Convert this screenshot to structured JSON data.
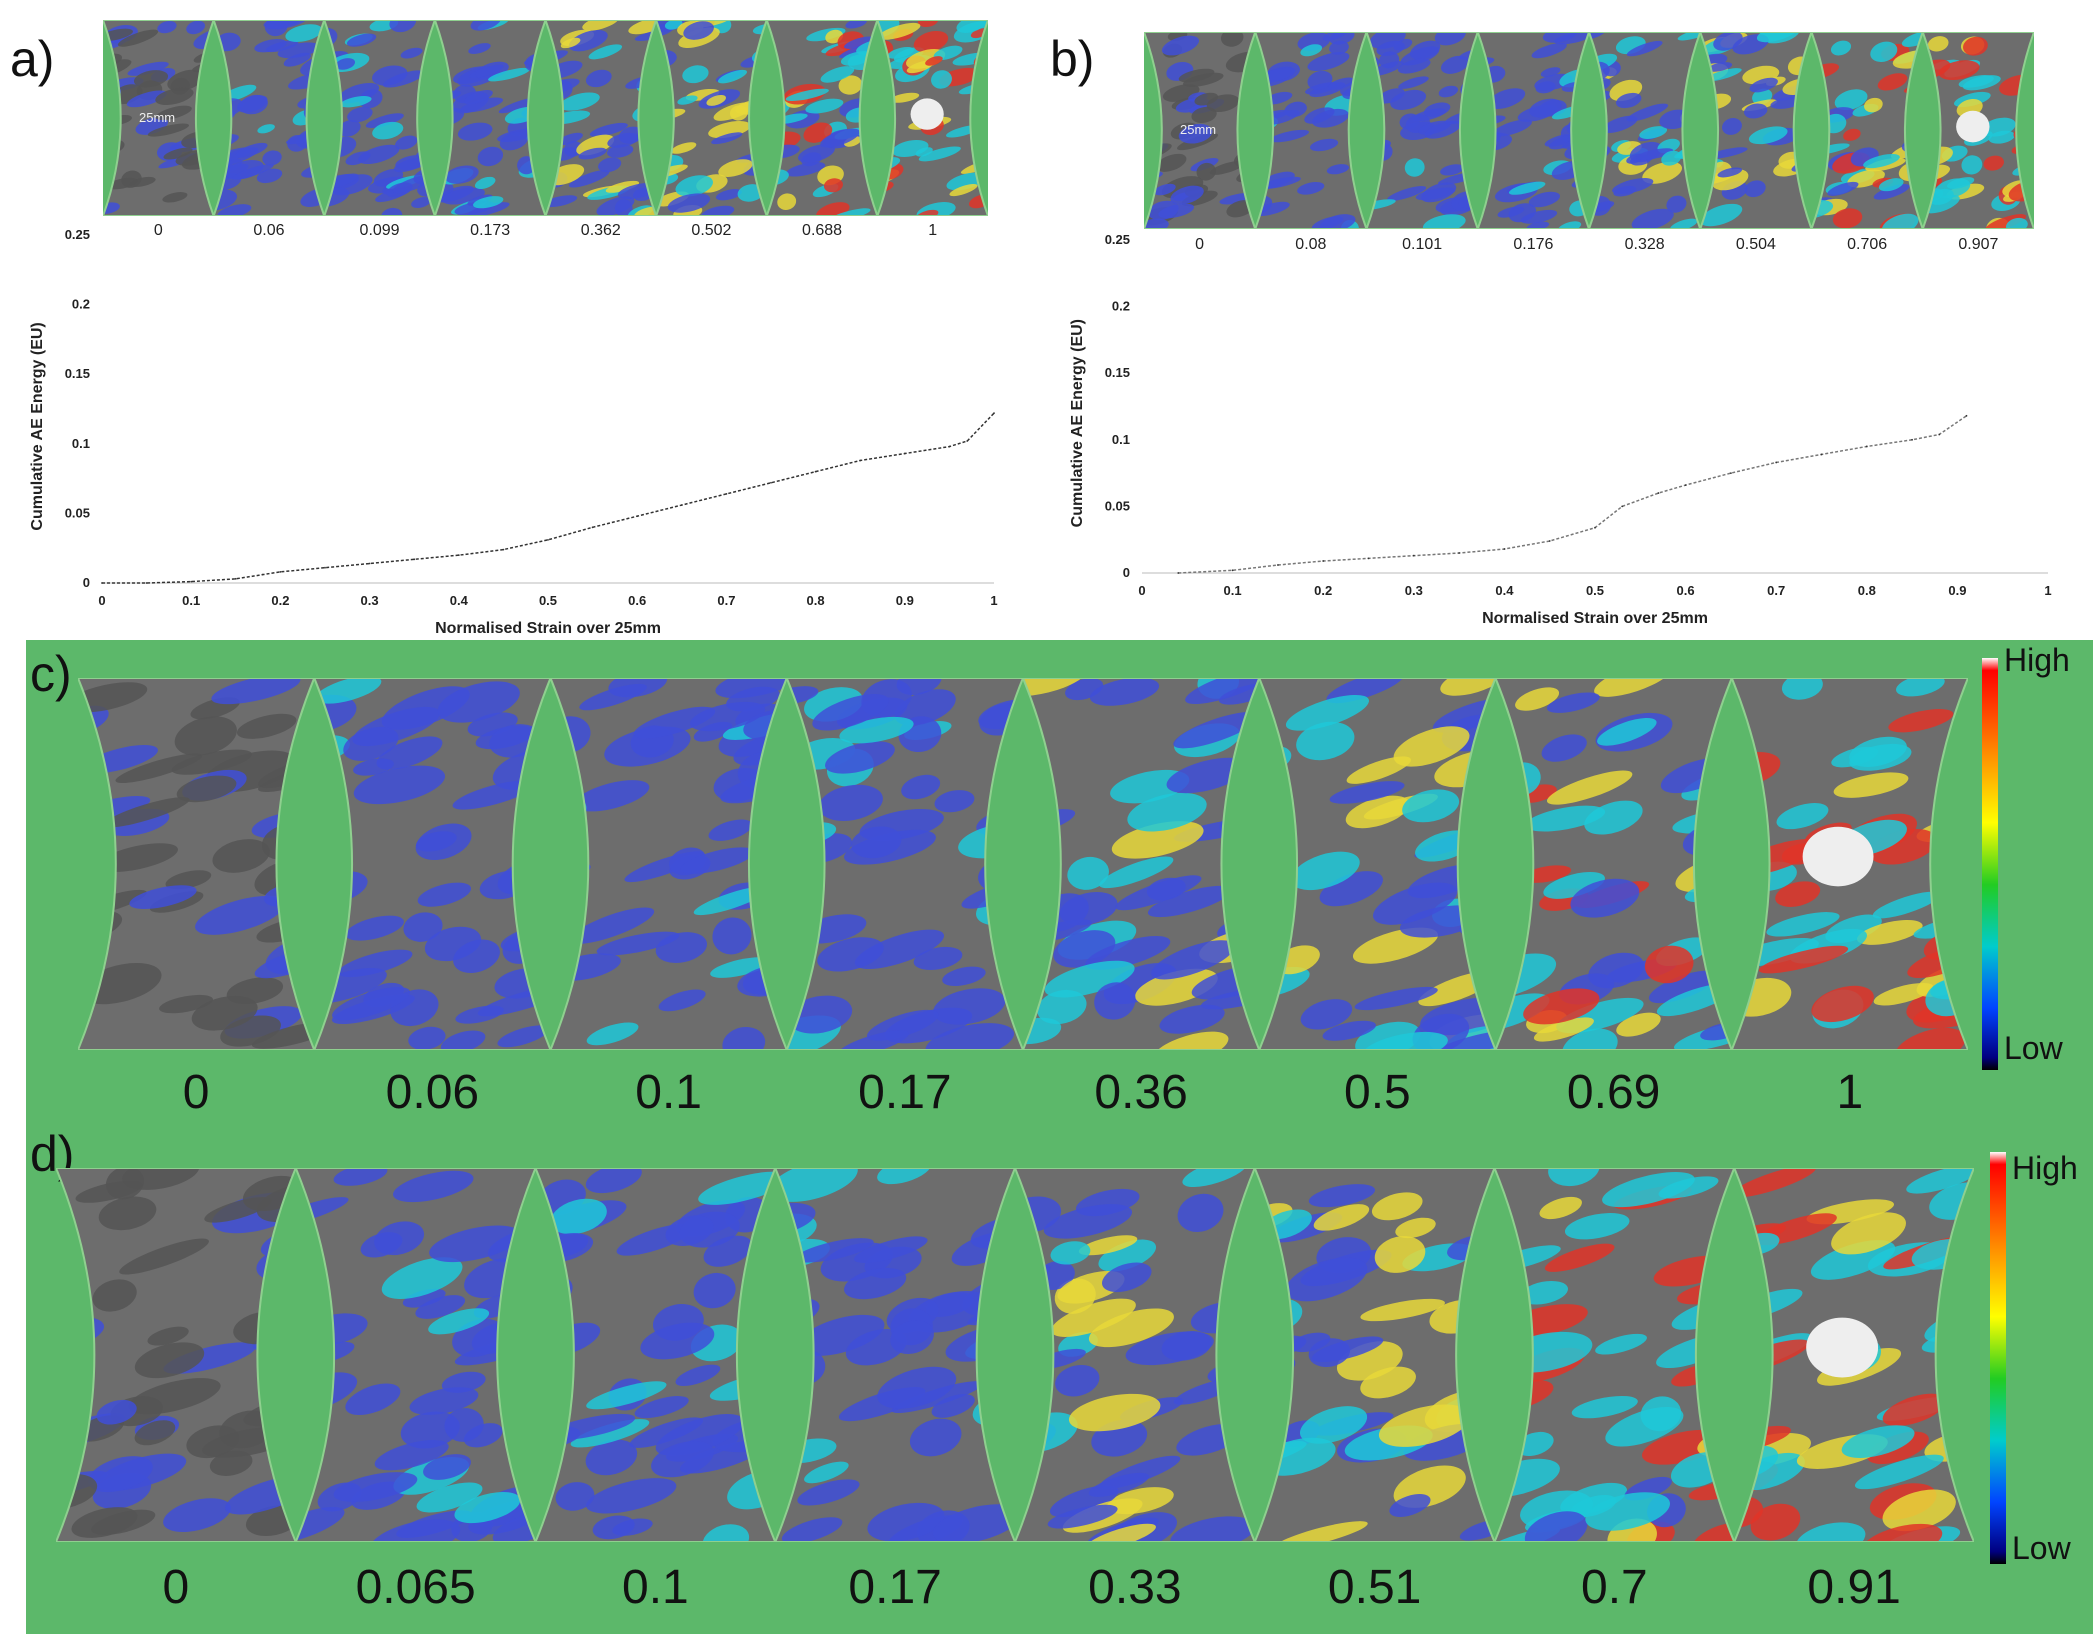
{
  "colors": {
    "background_green": "#5cb86a",
    "grey": "#6d6d6d",
    "blue": "#3f4fd8",
    "cyan": "#1fc8d8",
    "yellow": "#e8d83a",
    "red": "#e03428",
    "white": "#eeeeee"
  },
  "panel_a": {
    "letter": "a)",
    "scale_label": "25mm",
    "strains": [
      "0",
      "0.06",
      "0.099",
      "0.173",
      "0.362",
      "0.502",
      "0.688",
      "1"
    ],
    "strain_values": [
      0,
      0.06,
      0.099,
      0.173,
      0.362,
      0.502,
      0.688,
      1
    ]
  },
  "panel_b": {
    "letter": "b)",
    "scale_label": "25mm",
    "strains": [
      "0",
      "0.08",
      "0.101",
      "0.176",
      "0.328",
      "0.504",
      "0.706",
      "0.907"
    ],
    "strain_values": [
      0,
      0.08,
      0.101,
      0.176,
      0.328,
      0.504,
      0.706,
      0.907
    ]
  },
  "panel_c": {
    "letter": "c)",
    "strains": [
      "0",
      "0.06",
      "0.1",
      "0.17",
      "0.36",
      "0.5",
      "0.69",
      "1"
    ],
    "strain_values": [
      0,
      0.06,
      0.1,
      0.17,
      0.36,
      0.5,
      0.69,
      1
    ],
    "colorbar_high": "High",
    "colorbar_low": "Low"
  },
  "panel_d": {
    "letter": "d)",
    "strains": [
      "0",
      "0.065",
      "0.1",
      "0.17",
      "0.33",
      "0.51",
      "0.7",
      "0.91"
    ],
    "strain_values": [
      0,
      0.065,
      0.1,
      0.17,
      0.33,
      0.51,
      0.7,
      0.91
    ],
    "colorbar_high": "High",
    "colorbar_low": "Low"
  },
  "chart_data": [
    {
      "type": "line",
      "panel": "a",
      "title": "",
      "xlabel": "Normalised Strain over 25mm",
      "ylabel": "Cumulative AE Energy (EU)",
      "xlim": [
        0,
        1
      ],
      "ylim": [
        0,
        0.25
      ],
      "xticks": [
        "0",
        "0.1",
        "0.2",
        "0.3",
        "0.4",
        "0.5",
        "0.6",
        "0.7",
        "0.8",
        "0.9",
        "1"
      ],
      "yticks": [
        "0",
        "0.05",
        "0.1",
        "0.15",
        "0.2",
        "0.25"
      ],
      "x": [
        0,
        0.05,
        0.1,
        0.15,
        0.18,
        0.2,
        0.25,
        0.3,
        0.35,
        0.4,
        0.45,
        0.5,
        0.55,
        0.6,
        0.65,
        0.7,
        0.75,
        0.8,
        0.85,
        0.9,
        0.95,
        0.97,
        1
      ],
      "y": [
        0,
        0,
        0.001,
        0.003,
        0.006,
        0.008,
        0.011,
        0.014,
        0.017,
        0.02,
        0.024,
        0.031,
        0.04,
        0.048,
        0.056,
        0.064,
        0.072,
        0.08,
        0.088,
        0.093,
        0.098,
        0.102,
        0.122
      ]
    },
    {
      "type": "line",
      "panel": "b",
      "title": "",
      "xlabel": "Normalised Strain over 25mm",
      "ylabel": "Cumulative AE Energy (EU)",
      "xlim": [
        0,
        1
      ],
      "ylim": [
        0,
        0.25
      ],
      "xticks": [
        "0",
        "0.1",
        "0.2",
        "0.3",
        "0.4",
        "0.5",
        "0.6",
        "0.7",
        "0.8",
        "0.9",
        "1"
      ],
      "yticks": [
        "0",
        "0.05",
        "0.1",
        "0.15",
        "0.2",
        "0.25"
      ],
      "x": [
        0.04,
        0.1,
        0.15,
        0.2,
        0.25,
        0.3,
        0.35,
        0.4,
        0.45,
        0.5,
        0.53,
        0.57,
        0.6,
        0.65,
        0.7,
        0.75,
        0.8,
        0.85,
        0.88,
        0.91
      ],
      "y": [
        0,
        0.002,
        0.006,
        0.009,
        0.011,
        0.013,
        0.015,
        0.018,
        0.024,
        0.034,
        0.05,
        0.06,
        0.066,
        0.075,
        0.083,
        0.089,
        0.095,
        0.1,
        0.104,
        0.118
      ]
    }
  ]
}
